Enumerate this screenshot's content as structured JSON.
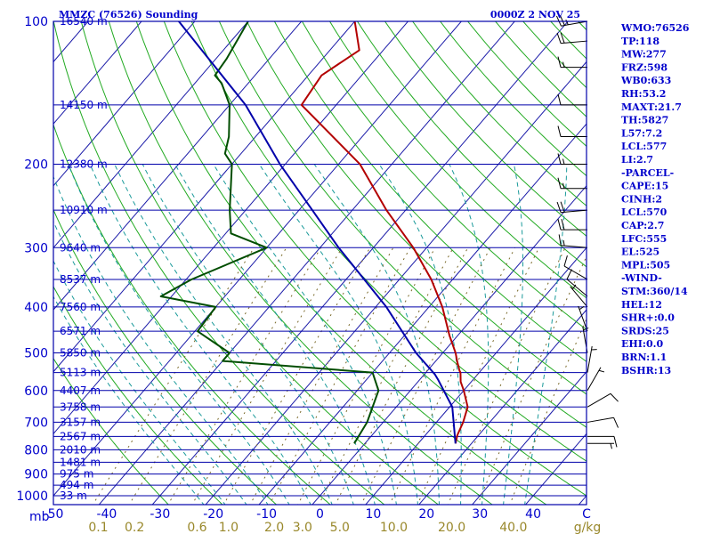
{
  "header": {
    "title": "MMZC (76526) Sounding",
    "time": "0000Z  2 NOV 25"
  },
  "chart_data": {
    "type": "line",
    "title": "MMZC (76526) Sounding",
    "subtitle": "0000Z  2 NOV 25",
    "xlabel": "°C",
    "ylabel": "mb",
    "xlim": [
      -50,
      50
    ],
    "pressure_ticks": [
      100,
      200,
      300,
      400,
      500,
      600,
      700,
      800,
      900,
      1000
    ],
    "pressure_tick_labels": [
      "100",
      "200",
      "300",
      "400",
      "500",
      "600",
      "700",
      "800",
      "900",
      "1000"
    ],
    "temperature_ticks": [
      -50,
      -40,
      -30,
      -20,
      -10,
      0,
      10,
      20,
      30,
      40
    ],
    "temperature_tick_labels": [
      "-50",
      "-40",
      "-30",
      "-20",
      "-10",
      "0",
      "10",
      "20",
      "30",
      "40"
    ],
    "x_unit_label": "C",
    "y_unit_label": "mb",
    "mixing_ratio_ticks": [
      0.1,
      0.2,
      0.6,
      1.0,
      2.0,
      3.0,
      5.0,
      10.0,
      20.0,
      40.0
    ],
    "mixing_ratio_labels": [
      "0.1",
      "0.2",
      "0.6",
      "1.0",
      "2.0",
      "3.0",
      "5.0",
      "10.0",
      "20.0",
      "40.0"
    ],
    "mixing_ratio_unit": "g/kg",
    "height_levels": [
      {
        "p": 100,
        "label": "16540 m"
      },
      {
        "p": 150,
        "label": "14150 m"
      },
      {
        "p": 200,
        "label": "12380 m"
      },
      {
        "p": 250,
        "label": "10910 m"
      },
      {
        "p": 300,
        "label": "9640 m"
      },
      {
        "p": 350,
        "label": "8537 m"
      },
      {
        "p": 400,
        "label": "7560 m"
      },
      {
        "p": 450,
        "label": "6571 m"
      },
      {
        "p": 500,
        "label": "5850 m"
      },
      {
        "p": 550,
        "label": "5113 m"
      },
      {
        "p": 600,
        "label": "4407 m"
      },
      {
        "p": 650,
        "label": "3758 m"
      },
      {
        "p": 700,
        "label": "3157 m"
      },
      {
        "p": 750,
        "label": "2567 m"
      },
      {
        "p": 800,
        "label": "2010 m"
      },
      {
        "p": 850,
        "label": "1481 m"
      },
      {
        "p": 900,
        "label": "975 m"
      },
      {
        "p": 950,
        "label": "494 m"
      },
      {
        "p": 1000,
        "label": "33 m"
      }
    ],
    "series": [
      {
        "name": "Temperature",
        "color": "#b30000",
        "points": [
          {
            "p": 776,
            "t": 17.0
          },
          {
            "p": 745,
            "t": 16.0
          },
          {
            "p": 700,
            "t": 15.0
          },
          {
            "p": 650,
            "t": 13.4
          },
          {
            "p": 600,
            "t": 10.0
          },
          {
            "p": 575,
            "t": 8.0
          },
          {
            "p": 550,
            "t": 6.5
          },
          {
            "p": 545,
            "t": 6.0
          },
          {
            "p": 520,
            "t": 4.0
          },
          {
            "p": 500,
            "t": 2.4
          },
          {
            "p": 480,
            "t": 0.5
          },
          {
            "p": 460,
            "t": -1.5
          },
          {
            "p": 430,
            "t": -4.4
          },
          {
            "p": 400,
            "t": -7.5
          },
          {
            "p": 350,
            "t": -14.0
          },
          {
            "p": 300,
            "t": -22.5
          },
          {
            "p": 250,
            "t": -33.6
          },
          {
            "p": 200,
            "t": -46.0
          },
          {
            "p": 150,
            "t": -66.5
          },
          {
            "p": 130,
            "t": -67.5
          },
          {
            "p": 115,
            "t": -64.5
          },
          {
            "p": 100,
            "t": -70.0
          }
        ]
      },
      {
        "name": "Dewpoint",
        "color": "#004d00",
        "points": [
          {
            "p": 776,
            "t": -2.0
          },
          {
            "p": 700,
            "t": -3.0
          },
          {
            "p": 600,
            "t": -6.0
          },
          {
            "p": 550,
            "t": -10.0
          },
          {
            "p": 520,
            "t": -40.0
          },
          {
            "p": 500,
            "t": -40.0
          },
          {
            "p": 450,
            "t": -49.5
          },
          {
            "p": 400,
            "t": -50.0
          },
          {
            "p": 380,
            "t": -62.0
          },
          {
            "p": 350,
            "t": -59.0
          },
          {
            "p": 300,
            "t": -50.0
          },
          {
            "p": 280,
            "t": -59.0
          },
          {
            "p": 250,
            "t": -63.0
          },
          {
            "p": 200,
            "t": -70.0
          },
          {
            "p": 190,
            "t": -73.0
          },
          {
            "p": 175,
            "t": -75.0
          },
          {
            "p": 150,
            "t": -80.0
          },
          {
            "p": 135,
            "t": -85.0
          },
          {
            "p": 130,
            "t": -87.5
          },
          {
            "p": 120,
            "t": -88.0
          },
          {
            "p": 100,
            "t": -90.0
          }
        ]
      },
      {
        "name": "Parcel",
        "color": "#0000aa",
        "points": [
          {
            "p": 776,
            "t": 17.0
          },
          {
            "p": 650,
            "t": 10.5
          },
          {
            "p": 570,
            "t": 3.5
          },
          {
            "p": 555,
            "t": 2.0
          },
          {
            "p": 500,
            "t": -5.0
          },
          {
            "p": 400,
            "t": -18.0
          },
          {
            "p": 300,
            "t": -36.5
          },
          {
            "p": 250,
            "t": -47.5
          },
          {
            "p": 200,
            "t": -61.0
          },
          {
            "p": 150,
            "t": -77.0
          },
          {
            "p": 100,
            "t": -103.0
          }
        ]
      }
    ],
    "wind_barbs": [
      {
        "p": 100,
        "dir": 260,
        "spd": 25
      },
      {
        "p": 110,
        "dir": 265,
        "spd": 20
      },
      {
        "p": 125,
        "dir": 270,
        "spd": 15
      },
      {
        "p": 150,
        "dir": 270,
        "spd": 10
      },
      {
        "p": 175,
        "dir": 270,
        "spd": 10
      },
      {
        "p": 200,
        "dir": 270,
        "spd": 15
      },
      {
        "p": 225,
        "dir": 270,
        "spd": 15
      },
      {
        "p": 250,
        "dir": 265,
        "spd": 20
      },
      {
        "p": 275,
        "dir": 270,
        "spd": 20
      },
      {
        "p": 300,
        "dir": 275,
        "spd": 15
      },
      {
        "p": 350,
        "dir": 300,
        "spd": 10
      },
      {
        "p": 380,
        "dir": 310,
        "spd": 10
      },
      {
        "p": 400,
        "dir": 320,
        "spd": 5
      },
      {
        "p": 450,
        "dir": 340,
        "spd": 5
      },
      {
        "p": 500,
        "dir": 350,
        "spd": 5
      },
      {
        "p": 550,
        "dir": 10,
        "spd": 5
      },
      {
        "p": 600,
        "dir": 30,
        "spd": 5
      },
      {
        "p": 650,
        "dir": 60,
        "spd": 10
      },
      {
        "p": 700,
        "dir": 80,
        "spd": 10
      },
      {
        "p": 750,
        "dir": 90,
        "spd": 10
      },
      {
        "p": 776,
        "dir": 90,
        "spd": 5
      }
    ]
  },
  "indices": [
    "WMO:76526",
    "TP:118",
    "MW:277",
    "FRZ:598",
    "WB0:633",
    "RH:53.2",
    "MAXT:21.7",
    "TH:5827",
    "L57:7.2",
    "LCL:577",
    "LI:2.7",
    "-PARCEL-",
    "CAPE:15",
    "CINH:2",
    "LCL:570",
    "CAP:2.7",
    "LFC:555",
    "EL:525",
    "MPL:505",
    "-WIND-",
    "STM:360/14",
    "HEL:12",
    "SHR+:0.0",
    "SRDS:25",
    "EHI:0.0",
    "BRN:1.1",
    "BSHR:13"
  ],
  "colors": {
    "frame": "#0000aa",
    "isotherm": "#1a1aa8",
    "dry_adiabat": "#22aa22",
    "moist_adiabat": "#1a9a9a",
    "mixing_ratio": "#7a6a2a",
    "text": "#0000cc",
    "mixing_label": "#99882b"
  }
}
